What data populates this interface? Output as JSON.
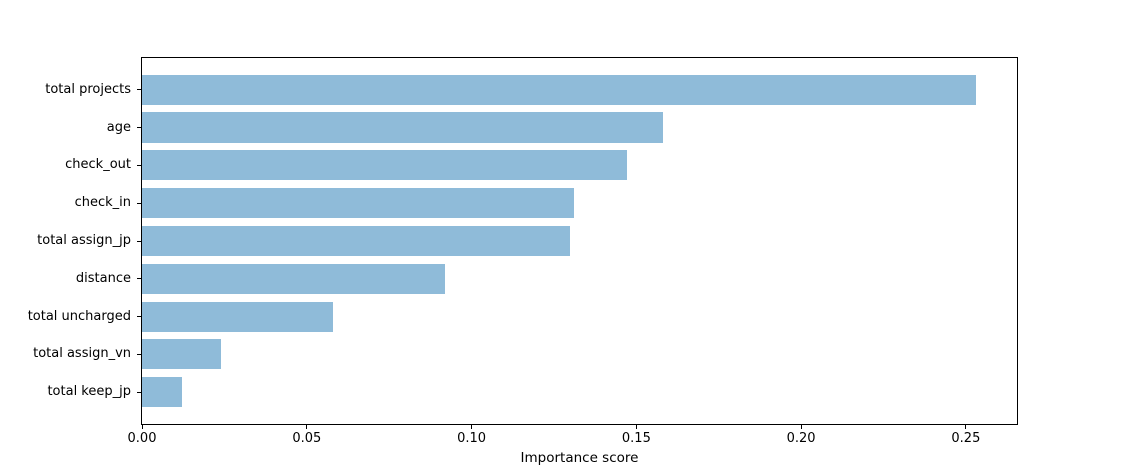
{
  "figure": {
    "background_color": "#ffffff",
    "spine_color": "#000000",
    "text_color": "#000000"
  },
  "chart_data": {
    "type": "bar",
    "orientation": "horizontal",
    "title": "",
    "xlabel": "Importance score",
    "ylabel": "",
    "categories": [
      "total projects",
      "age",
      "check_out",
      "check_in",
      "total assign_jp",
      "distance",
      "total uncharged",
      "total assign_vn",
      "total keep_jp"
    ],
    "values": [
      0.253,
      0.158,
      0.147,
      0.131,
      0.13,
      0.092,
      0.058,
      0.024,
      0.012
    ],
    "bar_color": "#8fbbd9",
    "xlim": [
      0,
      0.2655
    ],
    "xticks": [
      0,
      0.05,
      0.1,
      0.15,
      0.2,
      0.25
    ],
    "xtick_labels": [
      "0.00",
      "0.05",
      "0.10",
      "0.15",
      "0.20",
      "0.25"
    ],
    "grid": false,
    "legend_position": "none"
  }
}
